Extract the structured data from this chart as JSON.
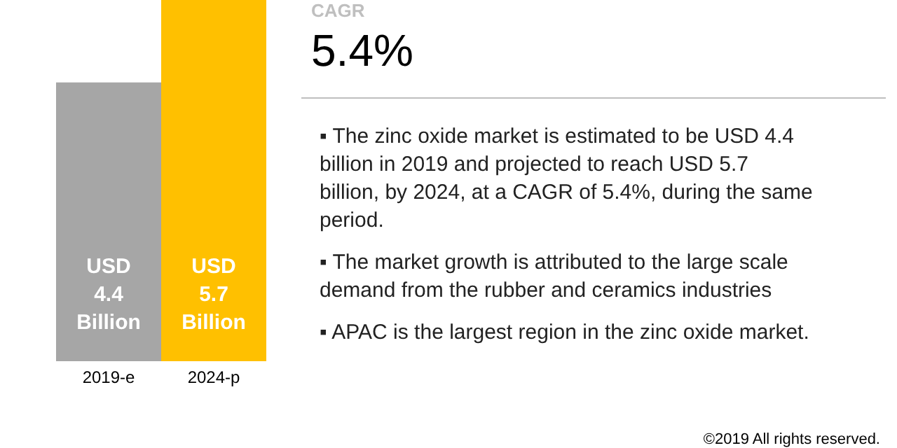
{
  "chart_data": {
    "type": "bar",
    "categories": [
      "2019-e",
      "2024-p"
    ],
    "values": [
      4.4,
      5.7
    ],
    "colors": [
      "#a6a6a6",
      "#ffc000"
    ],
    "value_labels": [
      "USD 4.4 Billion",
      "USD 5.7 Billion"
    ],
    "annotations": [
      "CAGR",
      "5.4%",
      "▪ The zinc oxide market is estimated to be USD 4.4 billion in 2019 and projected to reach USD 5.7 billion, by 2024, at a CAGR of 5.4%, during the same period.",
      "▪ The market growth is attributed to the large scale demand from the rubber and ceramics industries",
      "▪ APAC is the largest region in the zinc oxide market.",
      "©2019 All rights reserved."
    ]
  }
}
